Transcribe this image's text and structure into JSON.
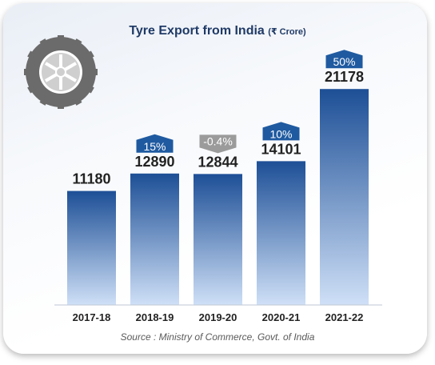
{
  "chart_data": {
    "type": "bar",
    "title": "Tyre Export from India",
    "unit": "(₹ Crore)",
    "categories": [
      "2017-18",
      "2018-19",
      "2019-20",
      "2020-21",
      "2021-22"
    ],
    "values": [
      11180,
      12890,
      12844,
      14101,
      21178
    ],
    "growth": [
      "",
      "15%",
      "-0.4%",
      "10%",
      "50%"
    ],
    "growth_direction": [
      "",
      "up",
      "down",
      "up",
      "up"
    ],
    "ylim": [
      0,
      23000
    ],
    "source": "Source : Ministry of Commerce, Govt. of India",
    "colors": {
      "bar_top": "#1d4f96",
      "bar_bottom": "#cfe0f7",
      "badge_up": "#1f5aa0",
      "badge_down": "#9b9b9b",
      "title": "#1f3a66"
    },
    "icon": "tyre-icon"
  }
}
